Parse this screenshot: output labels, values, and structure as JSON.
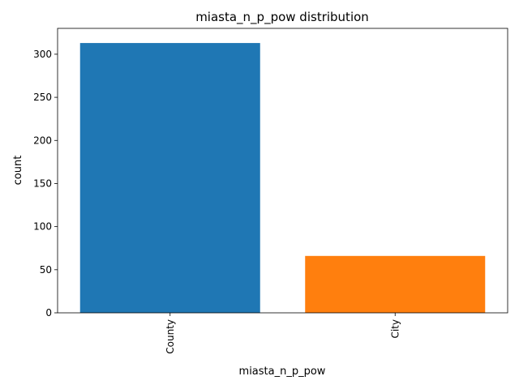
{
  "chart_data": {
    "type": "bar",
    "title": "miasta_n_p_pow distribution",
    "xlabel": "miasta_n_p_pow",
    "ylabel": "count",
    "categories": [
      "County",
      "City"
    ],
    "values": [
      313,
      66
    ],
    "colors": [
      "#1f77b4",
      "#ff7f0e"
    ],
    "ylim": [
      0,
      330
    ],
    "yticks": [
      0,
      50,
      100,
      150,
      200,
      250,
      300
    ],
    "grid": false,
    "legend": "none"
  }
}
